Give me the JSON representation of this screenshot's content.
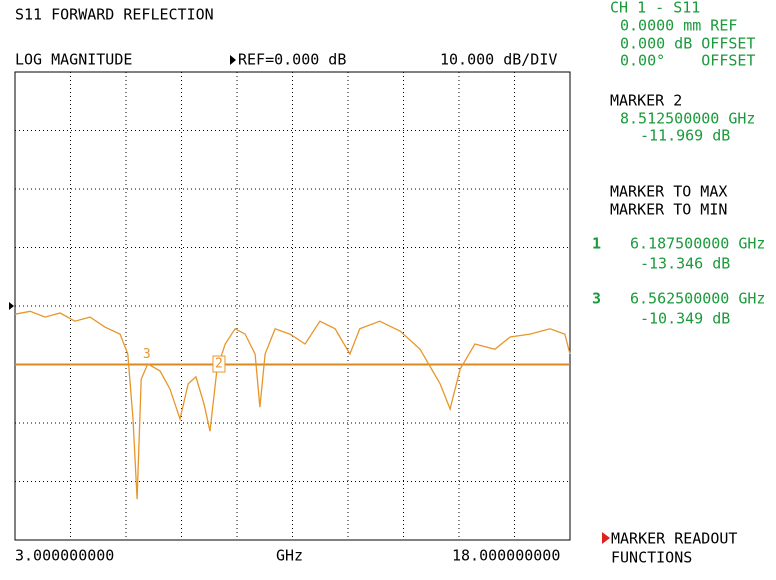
{
  "header": {
    "title": "S11 FORWARD REFLECTION",
    "format": "LOG MAGNITUDE",
    "ref": "REF=0.000 dB",
    "scale": "10.000 dB/DIV"
  },
  "chart_data": {
    "type": "line",
    "color": "#e8962a",
    "x": [
      3.0,
      3.41,
      3.81,
      4.22,
      4.62,
      5.03,
      5.43,
      5.84,
      6.05,
      6.19,
      6.3,
      6.41,
      6.59,
      6.92,
      7.19,
      7.46,
      7.68,
      7.89,
      8.11,
      8.27,
      8.46,
      8.68,
      8.95,
      9.22,
      9.49,
      9.62,
      9.76,
      10.03,
      10.43,
      10.84,
      11.24,
      11.65,
      12.05,
      12.32,
      12.86,
      13.41,
      13.95,
      14.49,
      14.76,
      15.03,
      15.43,
      15.97,
      16.38,
      16.92,
      17.46,
      17.86,
      18.0
    ],
    "values": [
      -1.4,
      -0.9,
      -1.9,
      -1.2,
      -2.6,
      -1.9,
      -3.6,
      -4.8,
      -8.2,
      -19.3,
      -33,
      -12.5,
      -9.9,
      -11.1,
      -14.2,
      -19.3,
      -13.3,
      -12.1,
      -16.8,
      -21.4,
      -10.8,
      -6.5,
      -3.9,
      -4.8,
      -8.2,
      -17.3,
      -8.2,
      -3.9,
      -4.8,
      -6.5,
      -2.6,
      -3.9,
      -8.2,
      -3.9,
      -2.6,
      -4.3,
      -7.4,
      -13.3,
      -17.6,
      -10.8,
      -6.5,
      -7.4,
      -5.3,
      -4.8,
      -3.9,
      -4.8,
      -8.2
    ],
    "xlim": [
      3,
      18
    ],
    "ylim": [
      -40,
      40
    ],
    "xticks": [
      3,
      4.5,
      6,
      7.5,
      9,
      10.5,
      12,
      13.5,
      15,
      16.5,
      18
    ],
    "yticks": [
      -40,
      -30,
      -20,
      -10,
      0,
      10,
      20,
      30,
      40
    ],
    "grid": true,
    "ref_value": 0,
    "hline": -10,
    "hline_color": "#d98a1f",
    "markers": [
      {
        "label": "3",
        "x": 6.5625,
        "y": -10.349
      },
      {
        "label": "2",
        "x": 8.5125,
        "y": -11.969,
        "boxed": true
      }
    ],
    "x_start_label": "3.000000000",
    "x_unit": "GHz",
    "x_stop_label": "18.000000000"
  },
  "side": {
    "channel": "CH 1 - S11",
    "ref_plane": "0.0000 mm REF",
    "offset_db": "0.000 dB OFFSET",
    "offset_deg": "0.00°    OFFSET",
    "active_marker": {
      "title": "MARKER 2",
      "freq": "8.512500000 GHz",
      "value": "-11.969 dB"
    },
    "menu": [
      "MARKER TO MAX",
      "MARKER TO MIN"
    ],
    "marker_list": [
      {
        "number": "1",
        "freq": "6.187500000 GHz",
        "value": "-13.346 dB"
      },
      {
        "number": "3",
        "freq": "6.562500000 GHz",
        "value": "-10.349 dB"
      }
    ],
    "softkey": [
      "MARKER READOUT",
      "FUNCTIONS"
    ]
  }
}
